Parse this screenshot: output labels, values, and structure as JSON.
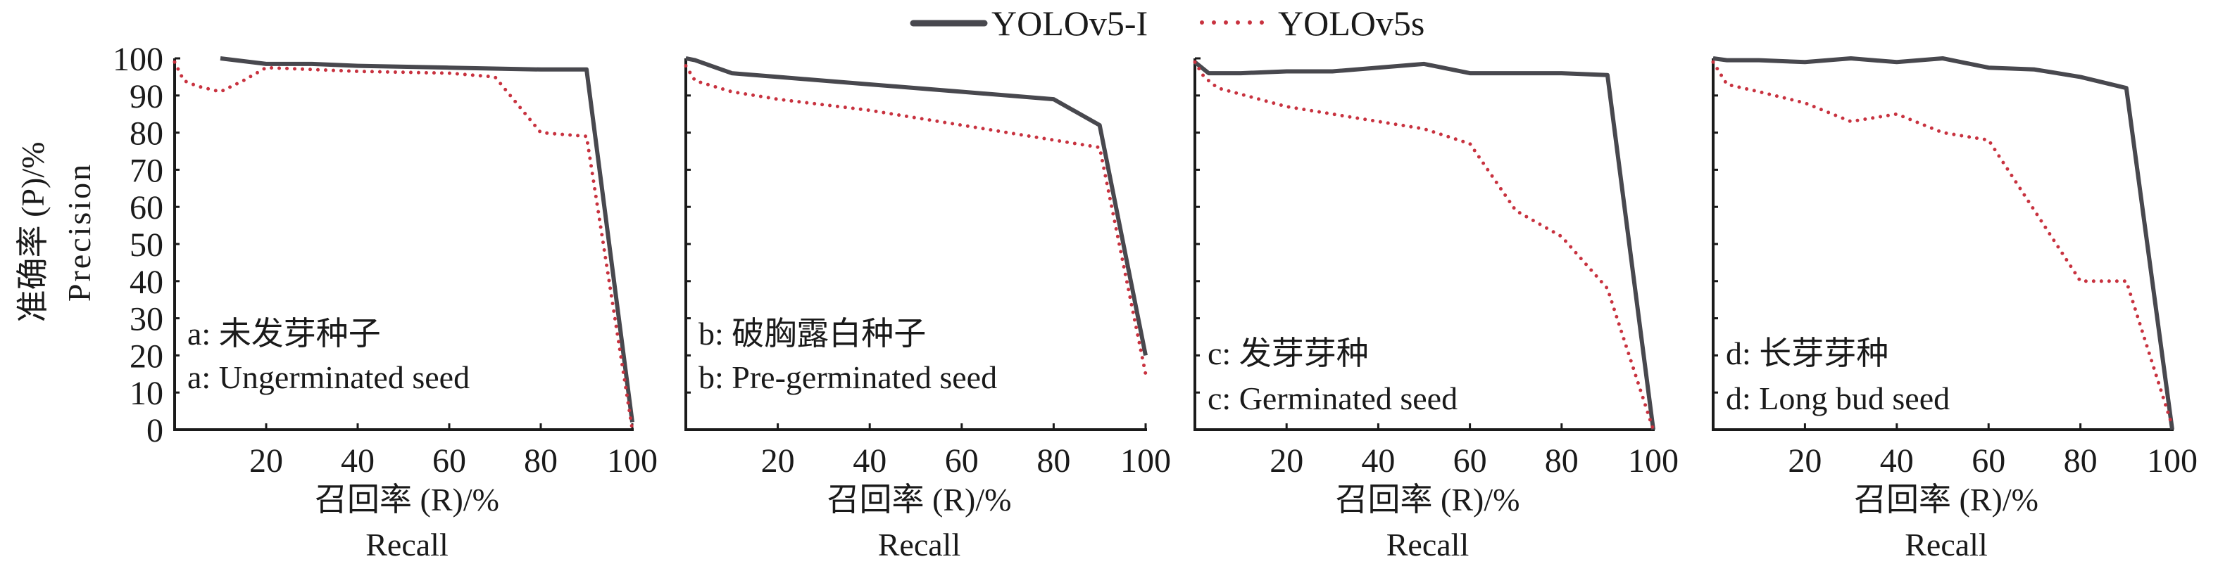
{
  "colors": {
    "yolov5_i": "#48484e",
    "yolov5s": "#c8323f",
    "axis": "#1a1a1a"
  },
  "legend": {
    "items": [
      {
        "label": "YOLOv5-I",
        "style": "solid"
      },
      {
        "label": "YOLOv5s",
        "style": "dotted"
      }
    ]
  },
  "chart_data": [
    {
      "type": "line",
      "panel": "a",
      "annotation_cn": "a: 未发芽种子",
      "annotation_en": "a: Ungerminated seed",
      "xlabel_cn": "召回率 (R)/%",
      "xlabel_en": "Recall",
      "ylabel_cn": "准确率 (P)/%",
      "ylabel_en": "Precision",
      "xlim": [
        0,
        100
      ],
      "ylim": [
        0,
        100
      ],
      "xticks": [
        "20",
        "40",
        "60",
        "80",
        "100"
      ],
      "yticks": [
        "0",
        "10",
        "20",
        "30",
        "40",
        "50",
        "60",
        "70",
        "80",
        "90",
        "100"
      ],
      "series": [
        {
          "name": "YOLOv5-I",
          "x": [
            10,
            20,
            30,
            40,
            60,
            80,
            90,
            100
          ],
          "y": [
            100,
            98.5,
            98.5,
            98,
            97.5,
            97,
            97,
            2
          ]
        },
        {
          "name": "YOLOv5s",
          "x": [
            0,
            2,
            5,
            10,
            15,
            20,
            40,
            60,
            70,
            80,
            90,
            100
          ],
          "y": [
            99,
            94,
            92.5,
            91,
            94,
            97.5,
            96.5,
            96,
            95,
            80,
            79,
            0
          ]
        }
      ]
    },
    {
      "type": "line",
      "panel": "b",
      "annotation_cn": "b: 破胸露白种子",
      "annotation_en": "b: Pre-germinated seed",
      "xlabel_cn": "召回率 (R)/%",
      "xlabel_en": "Recall",
      "xlim": [
        0,
        100
      ],
      "ylim": [
        0,
        100
      ],
      "xticks": [
        "20",
        "40",
        "60",
        "80",
        "100"
      ],
      "series": [
        {
          "name": "YOLOv5-I",
          "x": [
            0,
            2,
            10,
            20,
            40,
            60,
            80,
            90,
            100
          ],
          "y": [
            100,
            99.5,
            96,
            95,
            93,
            91,
            89,
            82,
            20
          ]
        },
        {
          "name": "YOLOv5s",
          "x": [
            0,
            2,
            10,
            20,
            40,
            60,
            80,
            90,
            100
          ],
          "y": [
            98,
            94,
            91,
            89,
            86,
            82,
            78,
            76,
            15
          ]
        }
      ]
    },
    {
      "type": "line",
      "panel": "c",
      "annotation_cn": "c: 发芽芽种",
      "annotation_en": "c: Germinated seed",
      "xlabel_cn": "召回率 (R)/%",
      "xlabel_en": "Recall",
      "xlim": [
        0,
        100
      ],
      "ylim": [
        0,
        100
      ],
      "xticks": [
        "20",
        "40",
        "60",
        "80",
        "100"
      ],
      "series": [
        {
          "name": "YOLOv5-I",
          "x": [
            0,
            3,
            10,
            20,
            30,
            50,
            60,
            80,
            90,
            100
          ],
          "y": [
            99,
            96,
            96,
            96.5,
            96.5,
            98.5,
            96,
            96,
            95.5,
            0
          ]
        },
        {
          "name": "YOLOv5s",
          "x": [
            0,
            2,
            5,
            20,
            40,
            50,
            60,
            70,
            80,
            90,
            100
          ],
          "y": [
            99,
            95,
            92,
            87,
            83,
            81,
            77,
            59,
            52,
            38,
            0
          ]
        }
      ]
    },
    {
      "type": "line",
      "panel": "d",
      "annotation_cn": "d: 长芽芽种",
      "annotation_en": "d: Long bud seed",
      "xlabel_cn": "召回率 (R)/%",
      "xlabel_en": "Recall",
      "xlim": [
        0,
        100
      ],
      "ylim": [
        0,
        100
      ],
      "xticks": [
        "20",
        "40",
        "60",
        "80",
        "100"
      ],
      "series": [
        {
          "name": "YOLOv5-I",
          "x": [
            0,
            3,
            10,
            20,
            30,
            40,
            50,
            60,
            70,
            80,
            90,
            100
          ],
          "y": [
            100,
            99.5,
            99.5,
            99,
            100,
            99,
            100,
            97.5,
            97,
            95,
            92,
            0
          ]
        },
        {
          "name": "YOLOv5s",
          "x": [
            0,
            3,
            10,
            20,
            30,
            40,
            50,
            60,
            70,
            80,
            90,
            100
          ],
          "y": [
            99,
            93,
            91,
            88,
            83,
            85,
            80,
            78,
            59,
            40,
            40,
            1
          ]
        }
      ]
    }
  ]
}
